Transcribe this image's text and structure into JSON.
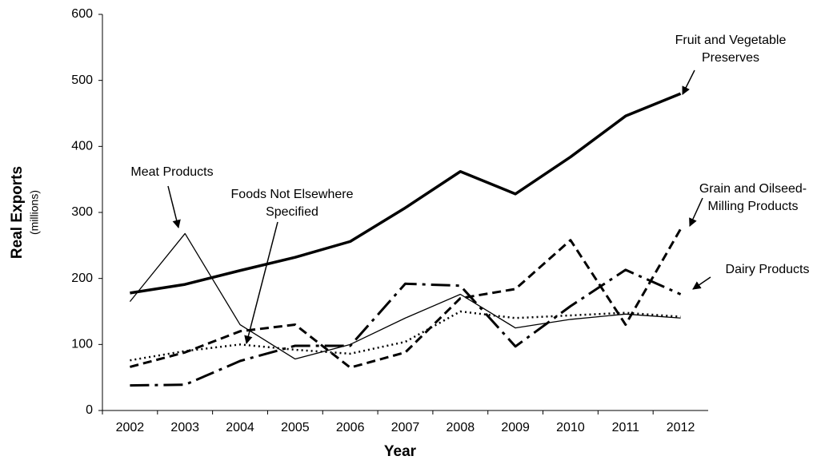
{
  "chart_data": {
    "type": "line",
    "x_label": "Year",
    "y_label": "Real Exports",
    "y_sublabel": "(millions)",
    "categories": [
      "2002",
      "2003",
      "2004",
      "2005",
      "2006",
      "2007",
      "2008",
      "2009",
      "2010",
      "2011",
      "2012"
    ],
    "ylim": [
      0,
      600
    ],
    "yticks": [
      0,
      100,
      200,
      300,
      400,
      500,
      600
    ],
    "grid": false,
    "series": [
      {
        "name": "Fruit and Vegetable Preserves",
        "color": "#000000",
        "style": "solid",
        "width": 3.5,
        "values": [
          178,
          191,
          212,
          232,
          256,
          307,
          362,
          328,
          384,
          446,
          480
        ]
      },
      {
        "name": "Meat Products",
        "color": "#000000",
        "style": "solid",
        "width": 1.3,
        "values": [
          165,
          268,
          130,
          78,
          100,
          140,
          176,
          125,
          138,
          146,
          140
        ]
      },
      {
        "name": "Foods Not Elsewhere Specified",
        "color": "#000000",
        "style": "dotted",
        "width": 2.5,
        "values": [
          76,
          90,
          100,
          92,
          86,
          104,
          150,
          140,
          144,
          148,
          142
        ]
      },
      {
        "name": "Grain and Oilseed-Milling Products",
        "color": "#000000",
        "style": "dashed",
        "width": 3,
        "values": [
          66,
          88,
          120,
          130,
          65,
          88,
          170,
          184,
          258,
          130,
          275
        ]
      },
      {
        "name": "Dairy Products",
        "color": "#000000",
        "style": "dashdot",
        "width": 3,
        "values": [
          38,
          39,
          75,
          98,
          98,
          192,
          189,
          97,
          158,
          213,
          176
        ]
      }
    ]
  }
}
